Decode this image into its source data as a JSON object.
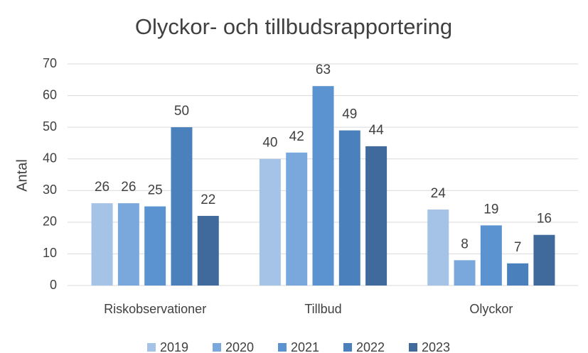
{
  "chart_data": {
    "type": "bar",
    "title": "Olyckor- och tillbudsrapportering",
    "y_label": "Antal",
    "categories": [
      "Riskobservationer",
      "Tillbud",
      "Olyckor"
    ],
    "series": [
      {
        "name": "2019",
        "color": "#a5c3e6",
        "values": [
          26,
          40,
          24
        ]
      },
      {
        "name": "2020",
        "color": "#7ba8dc",
        "values": [
          26,
          42,
          8
        ]
      },
      {
        "name": "2021",
        "color": "#5b93d1",
        "values": [
          25,
          63,
          19
        ]
      },
      {
        "name": "2022",
        "color": "#4a80bb",
        "values": [
          50,
          49,
          7
        ]
      },
      {
        "name": "2023",
        "color": "#3f6a9b",
        "values": [
          22,
          44,
          16
        ]
      }
    ],
    "ylim": [
      0,
      70
    ],
    "yticks": [
      0,
      10,
      20,
      30,
      40,
      50,
      60,
      70
    ],
    "grid": true,
    "legend": "bottom"
  }
}
